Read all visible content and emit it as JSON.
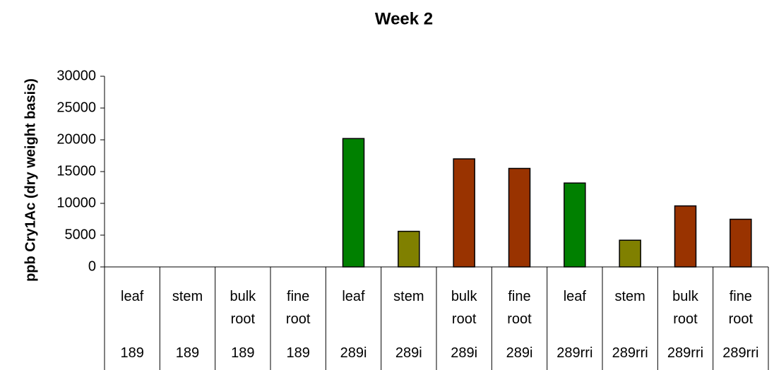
{
  "chart_data": {
    "type": "bar",
    "title": "Week 2",
    "y_label": "ppb Cry1Ac (dry weight basis)",
    "categories": [
      "leaf",
      "stem",
      "bulk root",
      "fine root",
      "leaf",
      "stem",
      "bulk root",
      "fine root",
      "leaf",
      "stem",
      "bulk root",
      "fine root"
    ],
    "groups": [
      "189",
      "189",
      "189",
      "189",
      "289i",
      "289i",
      "289i",
      "289i",
      "289rri",
      "289rri",
      "289rri",
      "289rri"
    ],
    "values": [
      0,
      0,
      0,
      0,
      20200,
      5600,
      17000,
      15500,
      13200,
      4200,
      9600,
      7500
    ],
    "colors": [
      "#008000",
      "#808000",
      "#993300",
      "#993300",
      "#008000",
      "#808000",
      "#993300",
      "#993300",
      "#008000",
      "#808000",
      "#993300",
      "#993300"
    ],
    "ylim": [
      0,
      30000
    ],
    "yticks": [
      0,
      5000,
      10000,
      15000,
      20000,
      25000,
      30000
    ],
    "grid": false
  }
}
